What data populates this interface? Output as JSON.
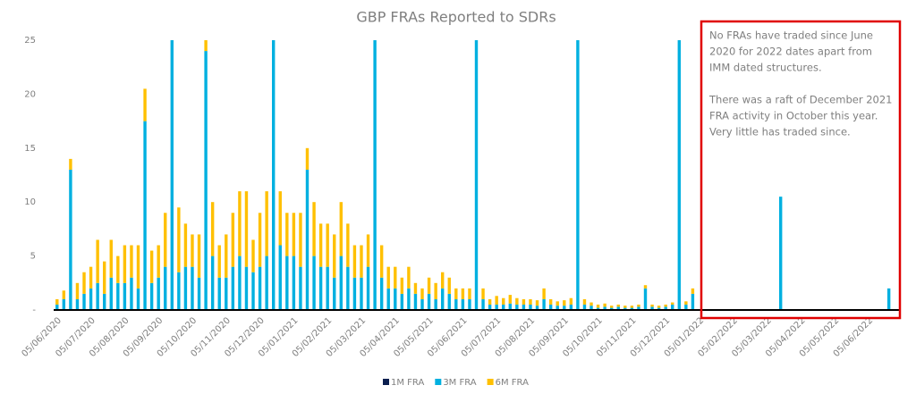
{
  "chart_data": {
    "type": "stacked_bar",
    "title": "GBP FRAs Reported to SDRs",
    "categories": [
      "05/06/2020",
      null,
      null,
      null,
      null,
      "05/07/2020",
      null,
      null,
      null,
      null,
      "05/08/2020",
      null,
      null,
      null,
      null,
      "05/09/2020",
      null,
      null,
      null,
      null,
      "05/10/2020",
      null,
      null,
      null,
      null,
      "05/11/2020",
      null,
      null,
      null,
      null,
      "05/12/2020",
      null,
      null,
      null,
      null,
      "05/01/2021",
      null,
      null,
      null,
      null,
      "05/02/2021",
      null,
      null,
      null,
      null,
      "05/03/2021",
      null,
      null,
      null,
      null,
      "05/04/2021",
      null,
      null,
      null,
      null,
      "05/05/2021",
      null,
      null,
      null,
      null,
      "05/06/2021",
      null,
      null,
      null,
      null,
      "05/07/2021",
      null,
      null,
      null,
      null,
      "05/08/2021",
      null,
      null,
      null,
      null,
      "05/09/2021",
      null,
      null,
      null,
      null,
      "05/10/2021",
      null,
      null,
      null,
      null,
      "05/11/2021",
      null,
      null,
      null,
      null,
      "05/12/2021",
      null,
      null,
      null,
      null,
      "05/01/2022",
      null,
      null,
      null,
      null,
      "05/02/2022",
      null,
      null,
      null,
      null,
      "05/03/2022",
      null,
      null,
      null,
      null,
      "05/04/2022",
      null,
      null,
      null,
      null,
      "05/05/2022",
      null,
      null,
      null,
      null,
      "05/06/2022",
      null,
      null,
      null,
      null
    ],
    "series": [
      {
        "name": "1M FRA",
        "color": "#0b1f4f",
        "values": [
          0,
          0,
          0,
          0,
          0,
          0,
          0,
          0,
          0,
          0,
          0,
          0,
          0,
          0,
          0,
          0,
          0,
          0,
          0,
          0,
          0,
          0,
          0,
          0,
          0,
          0,
          0,
          0,
          0,
          0,
          0,
          0,
          0,
          0,
          0,
          0,
          0,
          0,
          0,
          0,
          0,
          0,
          0,
          0,
          0,
          0,
          0,
          0,
          0,
          0,
          0,
          0,
          0,
          0,
          0,
          0,
          0,
          0,
          0,
          0,
          0,
          0,
          0,
          0,
          0,
          0,
          0,
          0,
          0,
          0,
          0,
          0,
          0,
          0,
          0,
          0,
          0,
          0,
          0,
          0,
          0,
          0,
          0,
          0,
          0,
          0,
          0,
          0,
          0,
          0,
          0,
          0,
          0,
          0,
          0,
          0,
          0,
          0,
          0,
          0,
          0,
          0,
          0,
          0,
          0,
          0,
          0,
          0,
          0,
          0,
          0,
          0,
          0,
          0,
          0,
          0,
          0,
          0,
          0,
          0,
          0,
          0,
          0,
          0,
          0
        ]
      },
      {
        "name": "3M FRA",
        "color": "#00b0e0",
        "values": [
          0.5,
          1,
          13,
          1,
          1.5,
          2,
          2.5,
          1.5,
          3,
          2.5,
          2.5,
          3,
          2,
          17.5,
          2.5,
          3,
          4,
          25,
          3.5,
          4,
          4,
          3,
          24,
          5,
          3,
          3,
          4,
          5,
          4,
          3.5,
          4,
          5,
          25,
          6,
          5,
          5,
          4,
          13,
          5,
          4,
          4,
          3,
          5,
          4,
          3,
          3,
          4,
          25,
          3,
          2,
          2,
          1.5,
          2,
          1.5,
          1,
          1.5,
          1,
          2,
          1.5,
          1,
          1,
          1,
          25,
          1,
          0.5,
          0.5,
          0.5,
          0.6,
          0.5,
          0.5,
          0.5,
          0.4,
          1,
          0.5,
          0.4,
          0.4,
          0.5,
          25,
          0.5,
          0.4,
          0.2,
          0.3,
          0.2,
          0.3,
          0.2,
          0.2,
          0.3,
          2,
          0.3,
          0.2,
          0.3,
          0.5,
          25,
          0.5,
          1.5,
          0,
          0,
          0,
          0,
          0,
          0,
          0,
          0,
          0,
          0,
          0,
          0,
          10.5,
          0,
          0,
          0,
          0,
          0,
          0,
          0,
          0,
          0,
          0,
          0,
          0,
          0,
          0,
          0,
          2,
          0
        ]
      },
      {
        "name": "6M FRA",
        "color": "#ffc000",
        "values": [
          0.5,
          0.8,
          1,
          1.5,
          2,
          2,
          4,
          3,
          3.5,
          2.5,
          3.5,
          3,
          4,
          3,
          3,
          3,
          5,
          0,
          6,
          4,
          3,
          4,
          1,
          5,
          3,
          4,
          5,
          6,
          7,
          3,
          5,
          6,
          0,
          5,
          4,
          4,
          5,
          2,
          5,
          4,
          4,
          4,
          5,
          4,
          3,
          3,
          3,
          0,
          3,
          2,
          2,
          1.5,
          2,
          1,
          1,
          1.5,
          1.5,
          1.5,
          1.5,
          1,
          1,
          1,
          0,
          1,
          0.5,
          0.8,
          0.6,
          0.8,
          0.6,
          0.5,
          0.5,
          0.5,
          1,
          0.5,
          0.4,
          0.5,
          0.6,
          0,
          0.5,
          0.3,
          0.3,
          0.3,
          0.2,
          0.2,
          0.2,
          0.2,
          0.2,
          0.3,
          0.2,
          0.2,
          0.2,
          0.2,
          0,
          0.3,
          0.5,
          0,
          0,
          0,
          0,
          0,
          0,
          0,
          0,
          0,
          0,
          0,
          0,
          0,
          0,
          0,
          0,
          0,
          0,
          0,
          0,
          0,
          0,
          0,
          0,
          0,
          0,
          0,
          0,
          0,
          0
        ]
      }
    ],
    "ylim": [
      0,
      25
    ],
    "yticks": [
      {
        "value": 0,
        "label": "-"
      },
      5,
      10,
      15,
      20,
      25
    ],
    "grid": false,
    "annotation": [
      "No FRAs have traded since June",
      "2020  for 2022 dates apart from",
      "IMM dated structures.",
      "There was a raft of December 2021",
      "FRA activity in October this year.",
      "Very little has traded since."
    ],
    "annotation_color": "#e00000",
    "legend": "bottom"
  }
}
